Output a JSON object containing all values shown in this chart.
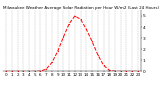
{
  "title": "Milwaukee Weather Average Solar Radiation per Hour W/m2 (Last 24 Hours)",
  "hours": [
    0,
    1,
    2,
    3,
    4,
    5,
    6,
    7,
    8,
    9,
    10,
    11,
    12,
    13,
    14,
    15,
    16,
    17,
    18,
    19,
    20,
    21,
    22,
    23
  ],
  "values": [
    0,
    0,
    0,
    0,
    0,
    0,
    2,
    20,
    80,
    180,
    310,
    430,
    500,
    470,
    380,
    270,
    150,
    55,
    10,
    1,
    0,
    0,
    0,
    0
  ],
  "line_color": "#ff0000",
  "bg_color": "#ffffff",
  "grid_color": "#999999",
  "ylim": [
    0,
    550
  ],
  "ytick_values": [
    0,
    100,
    200,
    300,
    400,
    500
  ],
  "ytick_labels": [
    "0",
    "1",
    "2",
    "3",
    "4",
    "5"
  ],
  "ylabel_fontsize": 3.2,
  "xlabel_fontsize": 3.0,
  "title_fontsize": 3.0,
  "linewidth": 0.7,
  "markersize": 1.0
}
